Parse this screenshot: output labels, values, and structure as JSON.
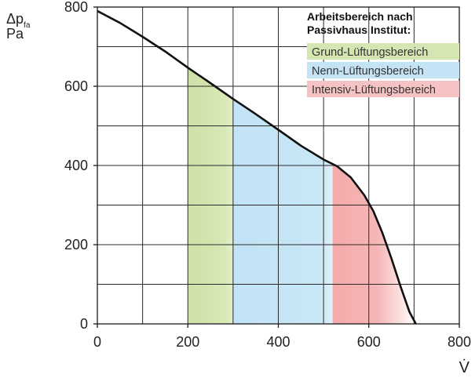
{
  "chart_data": {
    "type": "line",
    "xlabel": "V̇",
    "ylabel_symbol": "Δp",
    "ylabel_subscript": "fa",
    "ylabel_unit": "Pa",
    "xlim": [
      0,
      800
    ],
    "ylim": [
      0,
      800
    ],
    "x_ticks": [
      0,
      200,
      400,
      600,
      800
    ],
    "y_ticks": [
      0,
      200,
      400,
      600,
      800
    ],
    "x_grid_step": 100,
    "y_grid_step": 100,
    "grid": true,
    "curve": {
      "x": [
        0,
        50,
        100,
        150,
        200,
        250,
        300,
        350,
        400,
        450,
        500,
        530,
        560,
        590,
        610,
        630,
        650,
        670,
        690,
        704
      ],
      "y": [
        790,
        760,
        725,
        688,
        647,
        608,
        568,
        530,
        490,
        450,
        415,
        398,
        370,
        325,
        285,
        230,
        165,
        95,
        30,
        0
      ]
    },
    "legend": {
      "title_line1": "Arbeitsbereich nach",
      "title_line2": "Passivhaus Institut:",
      "position": "top-right",
      "items": [
        {
          "label": "Grund-Lüftungsbereich",
          "color": "#d5e6b3"
        },
        {
          "label": "Nenn-Lüftungsbereich",
          "color": "#c4e4f5"
        },
        {
          "label": "Intensiv-Lüftungsbereich",
          "color": "#f5c3c3"
        }
      ]
    },
    "ranges": [
      {
        "name": "Grund-Lüftungsbereich",
        "x0": 200,
        "x1": 300,
        "color": "#cfe1a7"
      },
      {
        "name": "Nenn-Lüftungsbereich",
        "x0": 300,
        "x1": 520,
        "color": "#c2e4f6"
      },
      {
        "name": "Intensiv-Lüftungsbereich",
        "x0": 520,
        "x1": 704,
        "color": "#f4aaaa"
      }
    ]
  }
}
